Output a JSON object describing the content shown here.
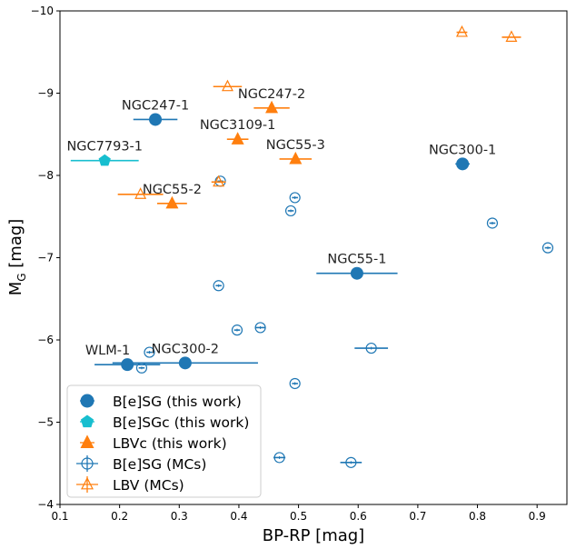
{
  "chart_data": {
    "type": "scatter",
    "xlabel": "BP-RP [mag]",
    "ylabel": "M_G [mag]",
    "ylabel_main": "M",
    "ylabel_sub": "G",
    "ylabel_unit": " [mag]",
    "xlim": [
      0.1,
      0.95
    ],
    "ylim": [
      -4,
      -10
    ],
    "x_ticks": [
      0.1,
      0.2,
      0.3,
      0.4,
      0.5,
      0.6,
      0.7,
      0.8,
      0.9
    ],
    "x_tick_labels": [
      "0.1",
      "0.2",
      "0.3",
      "0.4",
      "0.5",
      "0.6",
      "0.7",
      "0.8",
      "0.9"
    ],
    "y_ticks": [
      -10,
      -9,
      -8,
      -7,
      -6,
      -5,
      -4
    ],
    "y_tick_labels": [
      "−10",
      "−9",
      "−8",
      "−7",
      "−6",
      "−5",
      "−4"
    ],
    "colors": {
      "blue": "#1f77b4",
      "cyan": "#17becf",
      "orange": "#ff7f0e"
    },
    "series": [
      {
        "name": "B[e]SG (this work)",
        "marker": "circle-filled",
        "color": "#1f77b4",
        "points": [
          {
            "label": "NGC247-1",
            "x": 0.26,
            "y": -8.68,
            "xerr": 0.037
          },
          {
            "label": "NGC300-1",
            "x": 0.775,
            "y": -8.14,
            "xerr": 0.012
          },
          {
            "label": "NGC55-1",
            "x": 0.598,
            "y": -6.81,
            "xerr": 0.068
          },
          {
            "label": "WLM-1",
            "x": 0.213,
            "y": -5.7,
            "xerr": 0.055
          },
          {
            "label": "NGC300-2",
            "x": 0.31,
            "y": -5.72,
            "xerr": 0.122
          }
        ]
      },
      {
        "name": "B[e]SGc (this work)",
        "marker": "pentagon-filled",
        "color": "#17becf",
        "points": [
          {
            "label": "NGC7793-1",
            "x": 0.175,
            "y": -8.18,
            "xerr": 0.057
          }
        ]
      },
      {
        "name": "LBVc (this work)",
        "marker": "triangle-filled",
        "color": "#ff7f0e",
        "points": [
          {
            "label": "NGC247-2",
            "x": 0.455,
            "y": -8.82,
            "xerr": 0.03
          },
          {
            "label": "NGC3109-1",
            "x": 0.398,
            "y": -8.44,
            "xerr": 0.018
          },
          {
            "label": "NGC55-3",
            "x": 0.495,
            "y": -8.2,
            "xerr": 0.027
          },
          {
            "label": "NGC55-2",
            "x": 0.288,
            "y": -7.66,
            "xerr": 0.025
          }
        ]
      },
      {
        "name": "B[e]SG (MCs)",
        "marker": "circle-open",
        "color": "#1f77b4",
        "points": [
          {
            "x": 0.369,
            "y": -7.93,
            "xerr": 0.005
          },
          {
            "x": 0.494,
            "y": -7.73,
            "xerr": 0.005
          },
          {
            "x": 0.487,
            "y": -7.57,
            "xerr": 0.005
          },
          {
            "x": 0.825,
            "y": -7.42,
            "xerr": 0.005
          },
          {
            "x": 0.918,
            "y": -7.12,
            "xerr": 0.005
          },
          {
            "x": 0.366,
            "y": -6.66,
            "xerr": 0.005
          },
          {
            "x": 0.436,
            "y": -6.15,
            "xerr": 0.008
          },
          {
            "x": 0.397,
            "y": -6.12,
            "xerr": 0.005
          },
          {
            "x": 0.622,
            "y": -5.9,
            "xerr": 0.028
          },
          {
            "x": 0.25,
            "y": -5.85,
            "xerr": 0.005
          },
          {
            "x": 0.237,
            "y": -5.66,
            "xerr": 0.005
          },
          {
            "x": 0.494,
            "y": -5.47,
            "xerr": 0.005
          },
          {
            "x": 0.468,
            "y": -4.57,
            "xerr": 0.01
          },
          {
            "x": 0.588,
            "y": -4.51,
            "xerr": 0.018
          }
        ]
      },
      {
        "name": "LBV (MCs)",
        "marker": "triangle-open",
        "color": "#ff7f0e",
        "points": [
          {
            "x": 0.774,
            "y": -9.74,
            "xerr": 0.009
          },
          {
            "x": 0.857,
            "y": -9.68,
            "xerr": 0.016
          },
          {
            "x": 0.381,
            "y": -9.08,
            "xerr": 0.024
          },
          {
            "x": 0.235,
            "y": -7.77,
            "xerr": 0.038
          },
          {
            "x": 0.366,
            "y": -7.92,
            "xerr": 0.012
          }
        ]
      }
    ],
    "annotations": [
      {
        "text": "NGC247-1",
        "x": 0.26,
        "y": -8.68,
        "anchor": "above"
      },
      {
        "text": "NGC247-2",
        "x": 0.455,
        "y": -8.82,
        "anchor": "above"
      },
      {
        "text": "NGC3109-1",
        "x": 0.398,
        "y": -8.44,
        "anchor": "above"
      },
      {
        "text": "NGC7793-1",
        "x": 0.175,
        "y": -8.18,
        "anchor": "above"
      },
      {
        "text": "NGC55-3",
        "x": 0.495,
        "y": -8.2,
        "anchor": "above"
      },
      {
        "text": "NGC300-1",
        "x": 0.775,
        "y": -8.14,
        "anchor": "above"
      },
      {
        "text": "NGC55-2",
        "x": 0.288,
        "y": -7.66,
        "anchor": "above"
      },
      {
        "text": "NGC55-1",
        "x": 0.598,
        "y": -6.81,
        "anchor": "above"
      },
      {
        "text": "WLM-1",
        "x": 0.18,
        "y": -5.7,
        "anchor": "above"
      },
      {
        "text": "NGC300-2",
        "x": 0.31,
        "y": -5.72,
        "anchor": "above"
      }
    ],
    "legend": {
      "position": "lower-left",
      "entries": [
        {
          "label": "B[e]SG (this work)",
          "marker": "circle-filled",
          "color": "#1f77b4"
        },
        {
          "label": "B[e]SGc (this work)",
          "marker": "pentagon-filled",
          "color": "#17becf"
        },
        {
          "label": "LBVc (this work)",
          "marker": "triangle-filled",
          "color": "#ff7f0e"
        },
        {
          "label": "B[e]SG (MCs)",
          "marker": "circle-open",
          "color": "#1f77b4"
        },
        {
          "label": "LBV (MCs)",
          "marker": "triangle-open",
          "color": "#ff7f0e"
        }
      ]
    }
  }
}
